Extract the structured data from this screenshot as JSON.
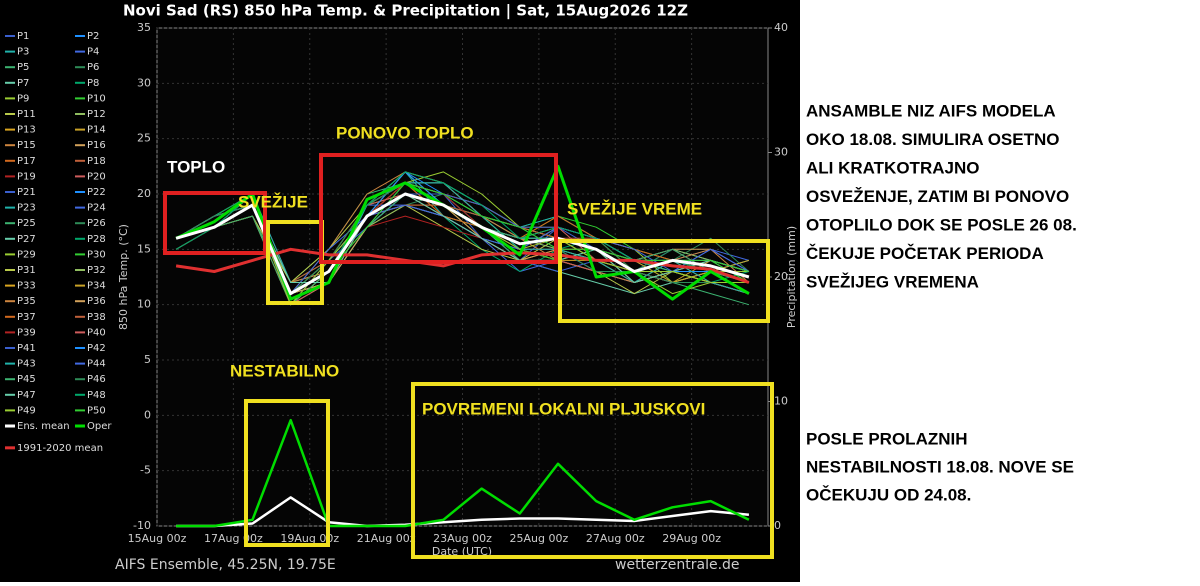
{
  "chart_data": {
    "type": "line",
    "title": "Novi Sad  (RS)  850 hPa Temp. & Precipitation | Sat, 15Aug2026 12Z",
    "source": "AIFS Ensemble, 45.25N, 19.75E",
    "credit": "wetterzentrale.de",
    "ylabel": "850 hPa Temp. (°C)",
    "y2label": "Precipitation (mm)",
    "xlabel": "Date (UTC)",
    "xlim": [
      0,
      16
    ],
    "xticks": [
      {
        "value": 0,
        "label": "15Aug 00z"
      },
      {
        "value": 2,
        "label": "17Aug 00z"
      },
      {
        "value": 4,
        "label": "19Aug 00z"
      },
      {
        "value": 6,
        "label": "21Aug 00z"
      },
      {
        "value": 8,
        "label": "23Aug 00z"
      },
      {
        "value": 10,
        "label": "25Aug 00z"
      },
      {
        "value": 12,
        "label": "27Aug 00z"
      },
      {
        "value": 14,
        "label": "29Aug 00z"
      }
    ],
    "ylim": [
      -10,
      35
    ],
    "yticks": [
      -10,
      -5,
      0,
      5,
      10,
      15,
      20,
      25,
      30,
      35
    ],
    "y2lim": [
      0,
      40
    ],
    "y2ticks": [
      0,
      10,
      20,
      30,
      40
    ],
    "grid": true,
    "x": [
      0.5,
      1.5,
      2.5,
      3.5,
      4.5,
      5.5,
      6.5,
      7.5,
      8.5,
      9.5,
      10.5,
      11.5,
      12.5,
      13.5,
      14.5,
      15.5
    ],
    "series": [
      {
        "name": "P1",
        "color": "#3a5fcd",
        "values": [
          16,
          17,
          19,
          12,
          14,
          19,
          21,
          20,
          16,
          14,
          17,
          15,
          12,
          14,
          13,
          12
        ]
      },
      {
        "name": "P2",
        "color": "#1e90ff",
        "values": [
          16,
          17,
          18,
          11,
          12,
          17,
          20,
          19,
          18,
          16,
          15,
          14,
          13,
          15,
          14,
          13
        ]
      },
      {
        "name": "P3",
        "color": "#20b2aa",
        "values": [
          16,
          18,
          20,
          10,
          13,
          19,
          22,
          18,
          17,
          15,
          17,
          16,
          14,
          13,
          12,
          11
        ]
      },
      {
        "name": "P4",
        "color": "#4169e1",
        "values": [
          16,
          17,
          19,
          11,
          14,
          18,
          19,
          18,
          16,
          13,
          14,
          13,
          12,
          13,
          15,
          14
        ]
      },
      {
        "name": "P5",
        "color": "#3cb371",
        "values": [
          16,
          17,
          19,
          12,
          15,
          20,
          21,
          21,
          19,
          17,
          18,
          16,
          14,
          12,
          11,
          10
        ]
      },
      {
        "name": "P6",
        "color": "#2e8b57",
        "values": [
          15,
          17,
          19,
          11,
          13,
          17,
          19,
          20,
          18,
          16,
          15,
          15,
          13,
          14,
          16,
          13
        ]
      },
      {
        "name": "P7",
        "color": "#66cdaa",
        "values": [
          16,
          18,
          19,
          10,
          12,
          18,
          22,
          19,
          17,
          14,
          13,
          12,
          11,
          12,
          13,
          12
        ]
      },
      {
        "name": "P8",
        "color": "#00a86b",
        "values": [
          16,
          17,
          20,
          11,
          13,
          19,
          20,
          18,
          15,
          13,
          15,
          16,
          15,
          14,
          12,
          13
        ]
      },
      {
        "name": "P9",
        "color": "#9acd32",
        "values": [
          16,
          17,
          19,
          12,
          14,
          18,
          21,
          22,
          20,
          17,
          16,
          14,
          13,
          11,
          12,
          11
        ]
      },
      {
        "name": "P10",
        "color": "#32cd32",
        "values": [
          16,
          17,
          18,
          11,
          12,
          17,
          20,
          19,
          17,
          16,
          18,
          17,
          15,
          14,
          13,
          14
        ]
      },
      {
        "name": "P11",
        "color": "#b8c94a",
        "values": [
          16,
          17,
          19,
          10,
          13,
          18,
          19,
          17,
          15,
          14,
          15,
          13,
          11,
          13,
          14,
          12
        ]
      },
      {
        "name": "P12",
        "color": "#8fbc5f",
        "values": [
          15,
          17,
          19,
          11,
          14,
          19,
          21,
          20,
          18,
          17,
          16,
          15,
          14,
          15,
          13,
          12
        ]
      },
      {
        "name": "P13",
        "color": "#daa520",
        "values": [
          16,
          18,
          20,
          11,
          12,
          18,
          20,
          18,
          16,
          15,
          14,
          14,
          12,
          13,
          12,
          11
        ]
      },
      {
        "name": "P14",
        "color": "#c9a227",
        "values": [
          16,
          17,
          19,
          12,
          13,
          17,
          19,
          19,
          18,
          17,
          17,
          16,
          13,
          12,
          14,
          13
        ]
      },
      {
        "name": "P15",
        "color": "#cd853f",
        "values": [
          16,
          17,
          19,
          11,
          15,
          20,
          22,
          21,
          18,
          15,
          14,
          13,
          12,
          14,
          13,
          12
        ]
      },
      {
        "name": "P16",
        "color": "#d2a15a",
        "values": [
          16,
          17,
          18,
          10,
          12,
          18,
          20,
          19,
          17,
          16,
          16,
          15,
          14,
          15,
          15,
          13
        ]
      },
      {
        "name": "P17",
        "color": "#d2691e",
        "values": [
          16,
          17,
          20,
          11,
          13,
          19,
          21,
          18,
          16,
          14,
          15,
          14,
          13,
          12,
          12,
          11
        ]
      },
      {
        "name": "P18",
        "color": "#c0603a",
        "values": [
          16,
          18,
          19,
          12,
          14,
          18,
          20,
          20,
          19,
          17,
          16,
          16,
          15,
          14,
          13,
          12
        ]
      },
      {
        "name": "P19",
        "color": "#b22222",
        "values": [
          16,
          17,
          19,
          11,
          13,
          17,
          18,
          17,
          16,
          15,
          16,
          15,
          12,
          13,
          14,
          13
        ]
      },
      {
        "name": "P20",
        "color": "#cd5c5c",
        "values": [
          16,
          17,
          19,
          10,
          12,
          19,
          21,
          21,
          18,
          16,
          17,
          14,
          13,
          14,
          12,
          12
        ]
      },
      {
        "name": "P21",
        "color": "#3a5fcd",
        "values": [
          15,
          17,
          19,
          11,
          14,
          18,
          20,
          19,
          17,
          14,
          13,
          14,
          14,
          15,
          13,
          11
        ]
      },
      {
        "name": "P22",
        "color": "#1e90ff",
        "values": [
          16,
          17,
          20,
          12,
          13,
          18,
          22,
          20,
          17,
          16,
          16,
          15,
          13,
          12,
          13,
          14
        ]
      },
      {
        "name": "P23",
        "color": "#20b2aa",
        "values": [
          16,
          18,
          19,
          11,
          12,
          17,
          20,
          19,
          18,
          17,
          18,
          16,
          14,
          13,
          14,
          12
        ]
      },
      {
        "name": "P24",
        "color": "#4169e1",
        "values": [
          16,
          17,
          19,
          10,
          13,
          19,
          19,
          18,
          16,
          15,
          15,
          13,
          12,
          14,
          15,
          13
        ]
      },
      {
        "name": "P25",
        "color": "#3cb371",
        "values": [
          16,
          17,
          18,
          11,
          14,
          18,
          21,
          20,
          17,
          14,
          14,
          15,
          14,
          13,
          12,
          12
        ]
      },
      {
        "name": "P26",
        "color": "#2e8b57",
        "values": [
          16,
          17,
          19,
          12,
          13,
          19,
          20,
          19,
          18,
          16,
          17,
          16,
          13,
          15,
          14,
          13
        ]
      },
      {
        "name": "P27",
        "color": "#66cdaa",
        "values": [
          16,
          17,
          19,
          11,
          12,
          17,
          21,
          21,
          19,
          17,
          16,
          14,
          12,
          13,
          13,
          11
        ]
      },
      {
        "name": "P28",
        "color": "#00a86b",
        "values": [
          16,
          18,
          20,
          11,
          14,
          18,
          20,
          18,
          16,
          15,
          15,
          15,
          14,
          14,
          12,
          12
        ]
      },
      {
        "name": "P29",
        "color": "#9acd32",
        "values": [
          16,
          17,
          19,
          10,
          13,
          19,
          22,
          19,
          17,
          16,
          17,
          16,
          15,
          12,
          13,
          13
        ]
      },
      {
        "name": "P30",
        "color": "#32cd32",
        "values": [
          15,
          17,
          19,
          11,
          13,
          18,
          20,
          20,
          18,
          15,
          14,
          13,
          13,
          14,
          14,
          12
        ]
      },
      {
        "name": "P31",
        "color": "#b8c94a",
        "values": [
          16,
          17,
          18,
          12,
          15,
          19,
          21,
          19,
          16,
          14,
          16,
          15,
          12,
          13,
          13,
          11
        ]
      },
      {
        "name": "P32",
        "color": "#8fbc5f",
        "values": [
          16,
          17,
          19,
          11,
          12,
          17,
          19,
          18,
          17,
          16,
          15,
          14,
          14,
          15,
          14,
          13
        ]
      },
      {
        "name": "P33",
        "color": "#daa520",
        "values": [
          16,
          18,
          19,
          10,
          13,
          18,
          21,
          20,
          19,
          17,
          16,
          15,
          13,
          13,
          12,
          12
        ]
      },
      {
        "name": "P34",
        "color": "#c9a227",
        "values": [
          16,
          17,
          20,
          11,
          14,
          19,
          20,
          19,
          17,
          15,
          17,
          16,
          14,
          12,
          13,
          14
        ]
      },
      {
        "name": "P35",
        "color": "#cd853f",
        "values": [
          16,
          17,
          19,
          12,
          13,
          18,
          22,
          21,
          18,
          16,
          14,
          13,
          12,
          14,
          15,
          12
        ]
      },
      {
        "name": "P36",
        "color": "#d2a15a",
        "values": [
          16,
          17,
          19,
          11,
          12,
          17,
          20,
          19,
          16,
          14,
          15,
          15,
          13,
          13,
          13,
          11
        ]
      },
      {
        "name": "P37",
        "color": "#d2691e",
        "values": [
          16,
          17,
          18,
          10,
          14,
          19,
          21,
          18,
          17,
          16,
          18,
          16,
          15,
          14,
          12,
          12
        ]
      },
      {
        "name": "P38",
        "color": "#c0603a",
        "values": [
          16,
          18,
          19,
          11,
          13,
          18,
          19,
          19,
          18,
          17,
          16,
          14,
          12,
          13,
          14,
          13
        ]
      },
      {
        "name": "P39",
        "color": "#b22222",
        "values": [
          15,
          17,
          20,
          12,
          12,
          18,
          21,
          20,
          17,
          15,
          15,
          15,
          14,
          15,
          13,
          12
        ]
      },
      {
        "name": "P40",
        "color": "#cd5c5c",
        "values": [
          16,
          17,
          19,
          11,
          13,
          19,
          20,
          18,
          16,
          14,
          14,
          13,
          13,
          12,
          12,
          11
        ]
      },
      {
        "name": "P41",
        "color": "#3a5fcd",
        "values": [
          16,
          17,
          19,
          10,
          14,
          17,
          20,
          20,
          19,
          17,
          17,
          16,
          14,
          14,
          14,
          13
        ]
      },
      {
        "name": "P42",
        "color": "#1e90ff",
        "values": [
          16,
          18,
          19,
          11,
          13,
          18,
          22,
          19,
          17,
          16,
          16,
          15,
          13,
          13,
          13,
          12
        ]
      },
      {
        "name": "P43",
        "color": "#20b2aa",
        "values": [
          16,
          17,
          20,
          12,
          12,
          19,
          21,
          21,
          18,
          15,
          15,
          14,
          12,
          14,
          12,
          11
        ]
      },
      {
        "name": "P44",
        "color": "#4169e1",
        "values": [
          16,
          17,
          19,
          11,
          15,
          18,
          19,
          18,
          16,
          15,
          17,
          16,
          15,
          13,
          15,
          13
        ]
      },
      {
        "name": "P45",
        "color": "#3cb371",
        "values": [
          16,
          17,
          18,
          10,
          13,
          17,
          20,
          19,
          17,
          16,
          16,
          15,
          14,
          15,
          13,
          12
        ]
      },
      {
        "name": "P46",
        "color": "#2e8b57",
        "values": [
          16,
          18,
          19,
          11,
          14,
          19,
          21,
          20,
          18,
          17,
          15,
          13,
          13,
          12,
          12,
          12
        ]
      },
      {
        "name": "P47",
        "color": "#66cdaa",
        "values": [
          16,
          17,
          19,
          12,
          12,
          18,
          20,
          18,
          16,
          14,
          14,
          15,
          12,
          13,
          14,
          13
        ]
      },
      {
        "name": "P48",
        "color": "#00a86b",
        "values": [
          15,
          17,
          20,
          11,
          13,
          19,
          22,
          21,
          19,
          16,
          17,
          16,
          14,
          14,
          13,
          11
        ]
      },
      {
        "name": "P49",
        "color": "#9acd32",
        "values": [
          16,
          17,
          19,
          10,
          14,
          18,
          20,
          19,
          17,
          15,
          16,
          14,
          13,
          13,
          12,
          12
        ]
      },
      {
        "name": "P50",
        "color": "#32cd32",
        "values": [
          16,
          17,
          19,
          11,
          13,
          17,
          21,
          20,
          18,
          17,
          15,
          15,
          14,
          14,
          14,
          13
        ]
      },
      {
        "name": "Ens. mean",
        "color": "#ffffff",
        "values": [
          16,
          17,
          19,
          11,
          13,
          18,
          20,
          19,
          17,
          15.5,
          16,
          15,
          13,
          14,
          13.5,
          12.5
        ],
        "precip": [
          0,
          0,
          0.2,
          2.3,
          0.3,
          0,
          0.1,
          0.3,
          0.5,
          0.6,
          0.6,
          0.5,
          0.4,
          0.8,
          1.2,
          0.9
        ]
      },
      {
        "name": "Oper",
        "color": "#00dd00",
        "values": [
          16,
          17.5,
          20,
          10.5,
          12,
          19.5,
          21,
          19,
          17,
          14.5,
          22.5,
          12.5,
          13,
          10.5,
          13,
          11
        ],
        "precip": [
          0,
          0,
          0.5,
          8.5,
          0,
          0,
          0,
          0.5,
          3,
          1,
          5,
          2,
          0.5,
          1.5,
          2,
          0.5
        ]
      },
      {
        "name": "1991-2020 mean",
        "color": "#e03030",
        "values": [
          13.5,
          13,
          14,
          15,
          14.5,
          14.5,
          14,
          13.5,
          14.5,
          14.7,
          14.5,
          14,
          14,
          13.5,
          13.2,
          12
        ]
      }
    ]
  },
  "annotations": {
    "warm": "TOPLO",
    "cooler": "SVEŽIJE",
    "warm_again": "PONOVO TOPLO",
    "cooler_weather": "SVEŽIJE VREME",
    "unstable": "NESTABILNO",
    "showers": "POVREMENI LOKALNI PLJUSKOVI"
  },
  "notes": {
    "first": [
      "ANSAMBLE NIZ AIFS MODELA",
      "OKO 18.08. SIMULIRA OSETNO",
      "ALI KRATKOTRAJNO",
      "OSVEŽENJE, ZATIM BI PONOVO",
      "OTOPLILO DOK SE POSLE 26 08.",
      "ČEKUJE POČETAK PERIODA",
      "SVEŽIJEG VREMENA"
    ],
    "second": [
      "POSLE PROLAZNIH",
      "NESTABILNOSTI 18.08. NOVE SE",
      "OČEKUJU OD 24.08."
    ]
  }
}
